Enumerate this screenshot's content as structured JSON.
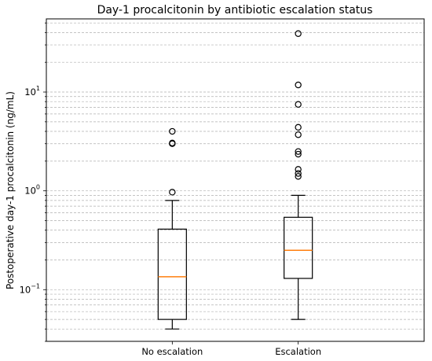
{
  "chart_data": {
    "type": "box",
    "title": "Day-1 procalcitonin by antibiotic escalation status",
    "xlabel": "",
    "ylabel": "Postoperative day-1 procalcitonin (ng/mL)",
    "yscale": "log",
    "ylim": [
      0.03,
      55
    ],
    "grid": {
      "axis": "y",
      "which": "both",
      "style": "dashed"
    },
    "categories": [
      "No escalation",
      "Escalation"
    ],
    "y_ticks": [
      {
        "base": "10",
        "exp": "−1",
        "value": 0.1
      },
      {
        "base": "10",
        "exp": "0",
        "value": 1
      },
      {
        "base": "10",
        "exp": "1",
        "value": 10
      }
    ],
    "boxes": [
      {
        "category": "No escalation",
        "whisker_low": 0.04,
        "q1": 0.05,
        "median": 0.135,
        "q3": 0.41,
        "whisker_high": 0.8,
        "outliers": [
          0.97,
          3.0,
          3.05,
          4.0
        ]
      },
      {
        "category": "Escalation",
        "whisker_low": 0.05,
        "q1": 0.13,
        "median": 0.25,
        "q3": 0.54,
        "whisker_high": 0.9,
        "outliers": [
          1.4,
          1.5,
          1.65,
          2.35,
          2.5,
          3.7,
          4.4,
          7.5,
          11.8,
          39.0
        ]
      }
    ],
    "colors": {
      "box": "#000000",
      "median": "#ff7f0e",
      "grid": "#b0b0b0"
    }
  }
}
